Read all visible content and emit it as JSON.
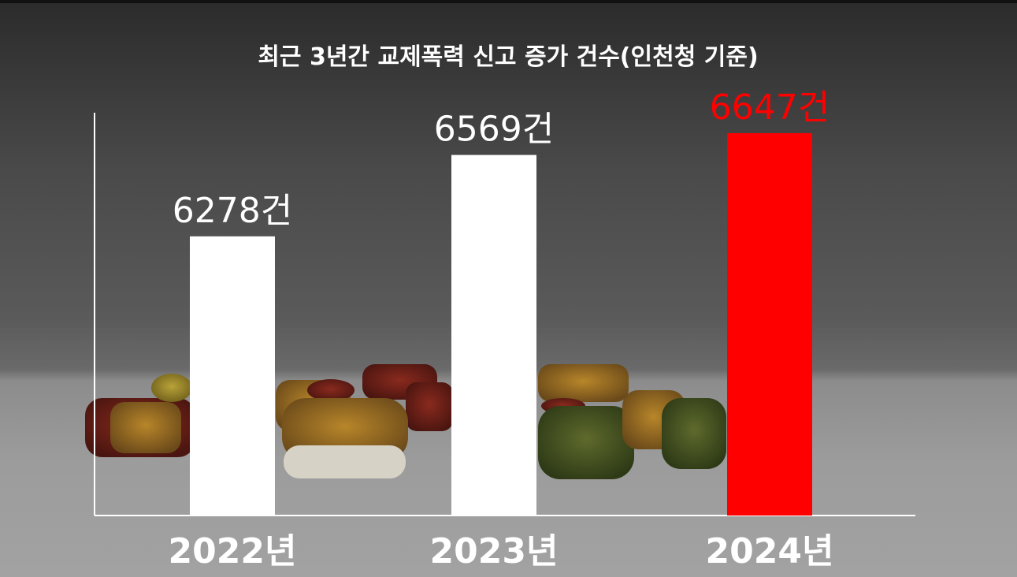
{
  "chart_data": {
    "type": "bar",
    "title": "최근 3년간 교제폭력 신고 증가 건수(인천청 기준)",
    "categories": [
      "2022년",
      "2023년",
      "2024년"
    ],
    "values": [
      6278,
      6569,
      6647
    ],
    "value_labels": [
      "6278건",
      "6569건",
      "6647건"
    ],
    "unit": "건",
    "bar_colors": [
      "#ffffff",
      "#ffffff",
      "#ff0000"
    ],
    "label_colors": [
      "#ffffff",
      "#ffffff",
      "#ff0000"
    ],
    "highlight_color": "#ff0000",
    "ylim": [
      5280,
      6720
    ],
    "xlabel": "",
    "ylabel": "",
    "grid": false,
    "legend": "none"
  }
}
